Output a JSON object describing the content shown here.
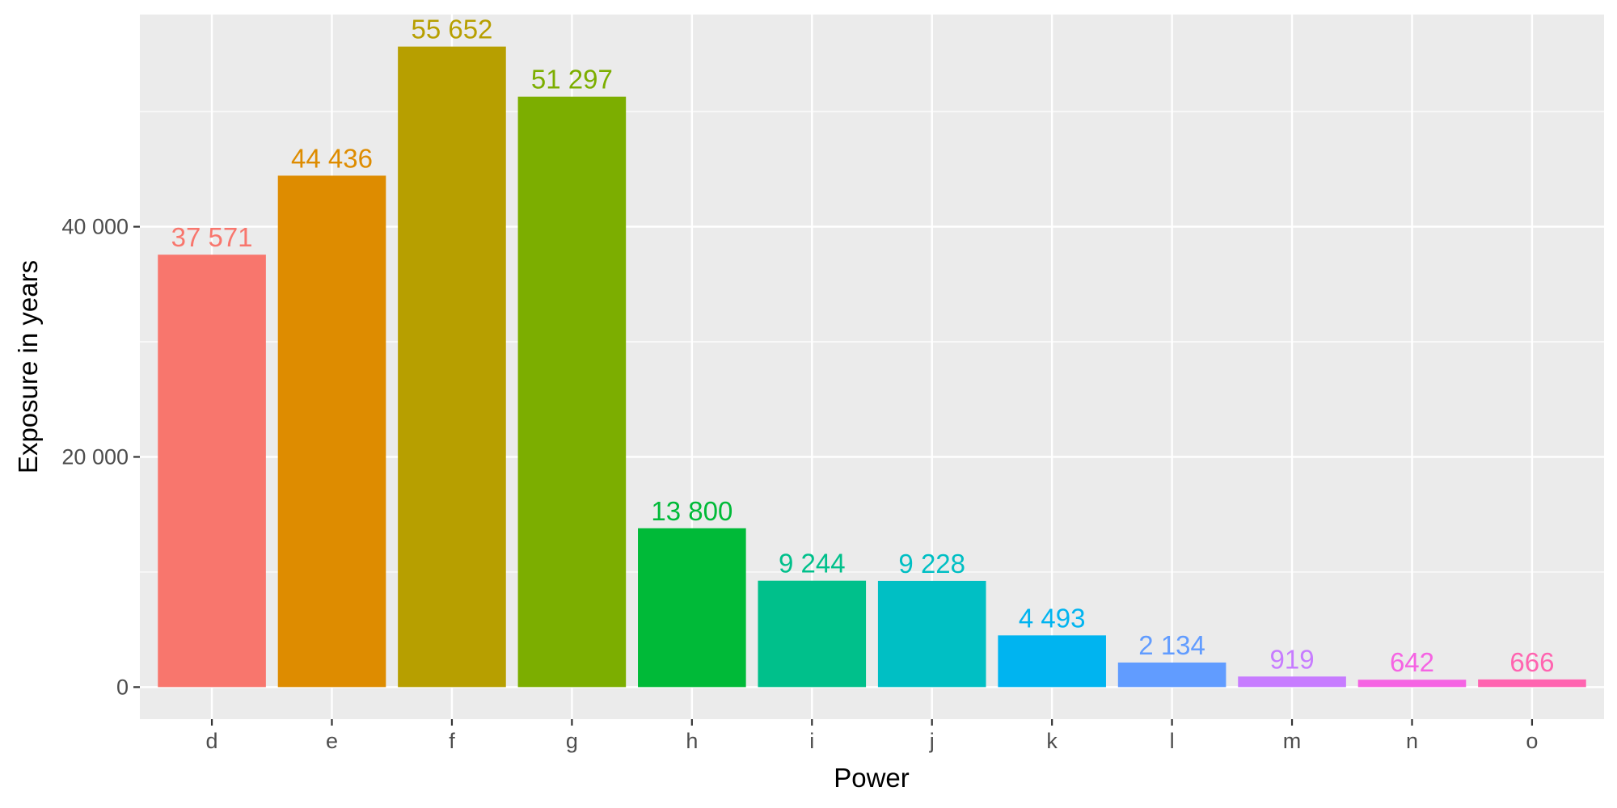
{
  "chart_data": {
    "type": "bar",
    "xlabel": "Power",
    "ylabel": "Exposure in years",
    "categories": [
      "d",
      "e",
      "f",
      "g",
      "h",
      "i",
      "j",
      "k",
      "l",
      "m",
      "n",
      "o"
    ],
    "values": [
      37571,
      44436,
      55652,
      51297,
      13800,
      9244,
      9228,
      4493,
      2134,
      919,
      642,
      666
    ],
    "value_labels": [
      "37 571",
      "44 436",
      "55 652",
      "51 297",
      "13 800",
      "9 244",
      "9 228",
      "4 493",
      "2 134",
      "919",
      "642",
      "666"
    ],
    "colors": [
      "#F8766D",
      "#DE8C00",
      "#B79F00",
      "#7CAE00",
      "#00BA38",
      "#00C08B",
      "#00BFC4",
      "#00B4F0",
      "#619CFF",
      "#C77CFF",
      "#F564E3",
      "#FF64B0"
    ],
    "yticks": [
      0,
      20000,
      40000
    ],
    "ytick_labels": [
      "0",
      "20 000",
      "40 000"
    ],
    "ylim": [
      -2782.6,
      58434.6
    ],
    "grid": true,
    "legend": "none",
    "panel_background": "#EBEBEB",
    "grid_color": "#FFFFFF"
  }
}
